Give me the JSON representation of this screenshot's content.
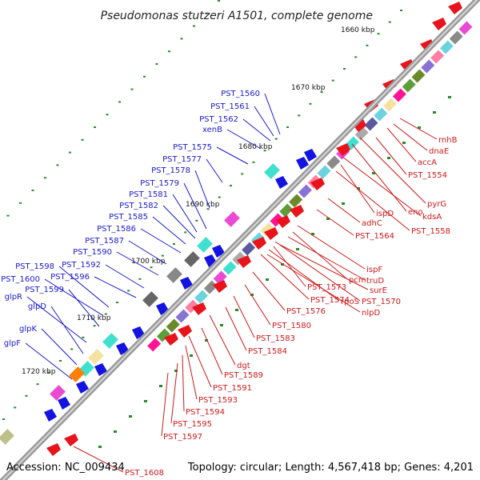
{
  "title": "Pseudomonas stutzeri A1501, complete genome",
  "accession": "Accession: NC_009434",
  "summary": "Topology: circular; Length: 4,567,418 bp; Genes: 4,201",
  "colors": {
    "backbone": "#888888",
    "forward_gene": "#e8141c",
    "reverse_gene": "#1414e0",
    "left_label": "#1a1acc",
    "right_label": "#cc1a1a",
    "tick": "#2a8a2a"
  },
  "ticks": [
    {
      "label": "1660 kbp"
    },
    {
      "label": "1670 kbp"
    },
    {
      "label": "1680 kbp"
    },
    {
      "label": "1690 kbp"
    },
    {
      "label": "1700 kbp"
    },
    {
      "label": "1710 kbp"
    },
    {
      "label": "1720 kbp"
    }
  ],
  "left_labels": [
    {
      "text": "PST_1560"
    },
    {
      "text": "PST_1561"
    },
    {
      "text": "PST_1562"
    },
    {
      "text": "xenB"
    },
    {
      "text": "PST_1575"
    },
    {
      "text": "PST_1577"
    },
    {
      "text": "PST_1578"
    },
    {
      "text": "PST_1579"
    },
    {
      "text": "PST_1581"
    },
    {
      "text": "PST_1582"
    },
    {
      "text": "PST_1585"
    },
    {
      "text": "PST_1586"
    },
    {
      "text": "PST_1587"
    },
    {
      "text": "PST_1590"
    },
    {
      "text": "PST_1592"
    },
    {
      "text": "PST_1596"
    },
    {
      "text": "PST_1598"
    },
    {
      "text": "PST_1600"
    },
    {
      "text": "PST_1599"
    },
    {
      "text": "glpR"
    },
    {
      "text": "glpD"
    },
    {
      "text": "glpK"
    },
    {
      "text": "glpF"
    }
  ],
  "right_labels": [
    {
      "text": "rnhB"
    },
    {
      "text": "dnaE"
    },
    {
      "text": "accA"
    },
    {
      "text": "PST_1554"
    },
    {
      "text": "pyrG"
    },
    {
      "text": "eno"
    },
    {
      "text": "kdsA"
    },
    {
      "text": "ispD"
    },
    {
      "text": "PST_1558"
    },
    {
      "text": "adhC"
    },
    {
      "text": "PST_1564"
    },
    {
      "text": "ispF"
    },
    {
      "text": "pcm"
    },
    {
      "text": "truD"
    },
    {
      "text": "PST_1573"
    },
    {
      "text": "surE"
    },
    {
      "text": "PST_1574"
    },
    {
      "text": "rpoS"
    },
    {
      "text": "PST_1570"
    },
    {
      "text": "nlpD"
    },
    {
      "text": "PST_1576"
    },
    {
      "text": "PST_1580"
    },
    {
      "text": "PST_1583"
    },
    {
      "text": "PST_1584"
    },
    {
      "text": "dgt"
    },
    {
      "text": "PST_1589"
    },
    {
      "text": "PST_1591"
    },
    {
      "text": "PST_1593"
    },
    {
      "text": "PST_1594"
    },
    {
      "text": "PST_1595"
    },
    {
      "text": "PST_1597"
    },
    {
      "text": "PST_1608"
    }
  ]
}
